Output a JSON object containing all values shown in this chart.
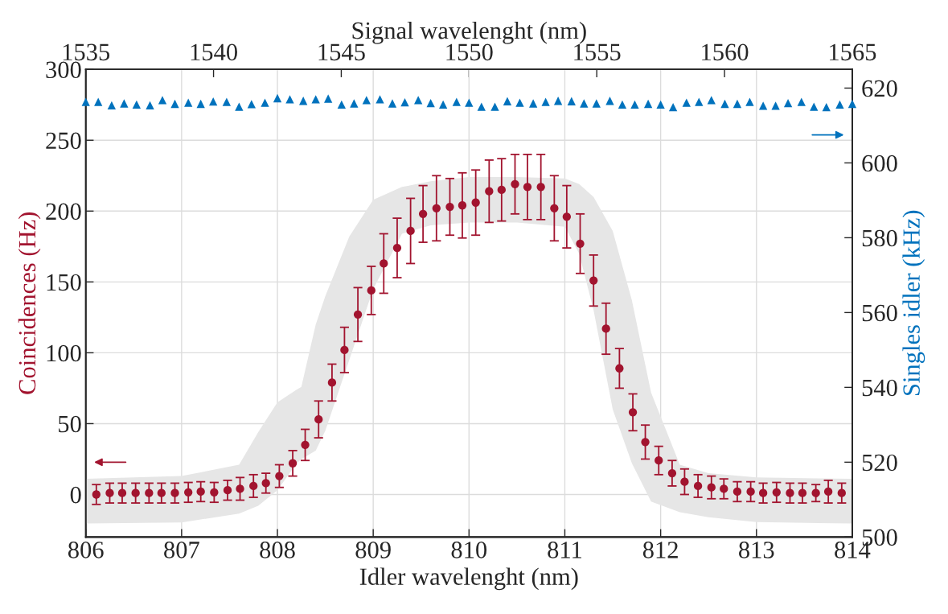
{
  "chart_data": {
    "type": "scatter",
    "xlabel": "Idler wavelenght (nm)",
    "x2label": "Signal wavelenght (nm)",
    "ylabel": "Coincidences (Hz)",
    "y2label": "Singles idler (kHz)",
    "xlim": [
      806,
      814
    ],
    "xticks": [
      806,
      807,
      808,
      809,
      810,
      811,
      812,
      813,
      814
    ],
    "x2lim": [
      1535,
      1565
    ],
    "x2ticks": [
      1535,
      1540,
      1545,
      1550,
      1555,
      1560,
      1565
    ],
    "ylim": [
      -30,
      300
    ],
    "yticks": [
      0,
      50,
      100,
      150,
      200,
      250,
      300
    ],
    "y2lim": [
      500,
      625
    ],
    "y2ticks": [
      500,
      520,
      540,
      560,
      580,
      600,
      620
    ],
    "grid": true,
    "legend": false,
    "series": [
      {
        "type": "area",
        "color": "#e6e6e6",
        "x": [
          806,
          807,
          807.6,
          807.8,
          808,
          808.2,
          808.25,
          808.4,
          808.5,
          808.75,
          809,
          809.3,
          809.6,
          810,
          810.5,
          811,
          811.15,
          811.3,
          811.5,
          811.7,
          811.9,
          812.2,
          812.5,
          813,
          814
        ],
        "values": [
          null,
          null,
          null,
          null,
          null,
          null,
          null,
          null,
          null,
          null,
          null,
          null,
          null,
          null,
          null,
          null,
          null,
          null,
          null,
          null,
          null,
          null,
          null,
          null,
          null
        ],
        "upper": [
          11,
          13,
          21,
          44,
          65,
          74,
          76,
          120,
          140,
          182,
          208,
          217,
          221,
          224,
          224,
          223,
          219,
          210,
          186,
          137,
          72,
          21,
          15,
          12,
          11
        ],
        "lower": [
          -20.5,
          -19.7,
          -13.5,
          -8,
          3,
          22,
          25,
          31,
          45,
          95,
          145,
          184,
          190,
          192,
          192,
          189,
          170,
          130,
          60,
          22,
          -5,
          -12.5,
          -16,
          -19.5,
          -20.5
        ]
      },
      {
        "marker": "circle",
        "color": "#a2142f",
        "x": [
          806.11,
          806.25,
          806.38,
          806.52,
          806.66,
          806.79,
          806.93,
          807.07,
          807.2,
          807.34,
          807.48,
          807.61,
          807.75,
          807.88,
          808.02,
          808.16,
          808.29,
          808.43,
          808.57,
          808.7,
          808.84,
          808.98,
          809.11,
          809.25,
          809.39,
          809.52,
          809.66,
          809.8,
          809.93,
          810.07,
          810.21,
          810.34,
          810.48,
          810.61,
          810.75,
          810.89,
          811.02,
          811.16,
          811.3,
          811.43,
          811.57,
          811.71,
          811.84,
          811.98,
          812.12,
          812.25,
          812.39,
          812.53,
          812.66,
          812.8,
          812.94,
          813.07,
          813.21,
          813.35,
          813.48,
          813.62,
          813.75,
          813.89
        ],
        "values": [
          0,
          1,
          1,
          1,
          1,
          1,
          1,
          1.5,
          2,
          1.5,
          3,
          4,
          6,
          8,
          13,
          22,
          35,
          53,
          79,
          102,
          127,
          144,
          163,
          174,
          186,
          198,
          202,
          203,
          204,
          206,
          214,
          215,
          219,
          217,
          217,
          202,
          196,
          177,
          151,
          117,
          89,
          58,
          37,
          24,
          15,
          9,
          6,
          5,
          4,
          2,
          2,
          1,
          1.5,
          1,
          1,
          1,
          2,
          1
        ],
        "errors": [
          7,
          7,
          7,
          7,
          7,
          7,
          7,
          7,
          7,
          7,
          7,
          8,
          8,
          7,
          8,
          9,
          11,
          13,
          13,
          16,
          19,
          17,
          21,
          21,
          23,
          20,
          23,
          20,
          23,
          23,
          22,
          22,
          21,
          23,
          23,
          23,
          22,
          21,
          18,
          18,
          14,
          13,
          12,
          10,
          9,
          9,
          8,
          8,
          7,
          7,
          7,
          7,
          7,
          7,
          7,
          6,
          8,
          7
        ]
      },
      {
        "marker": "triangle",
        "color": "#0072bd",
        "axis": "y2",
        "x": [
          806,
          806.13,
          806.27,
          806.4,
          806.53,
          806.67,
          806.8,
          806.93,
          807.07,
          807.2,
          807.33,
          807.47,
          807.6,
          807.73,
          807.87,
          808,
          808.13,
          808.27,
          808.4,
          808.53,
          808.67,
          808.8,
          808.93,
          809.07,
          809.2,
          809.33,
          809.47,
          809.6,
          809.73,
          809.87,
          810,
          810.13,
          810.27,
          810.4,
          810.53,
          810.67,
          810.8,
          810.93,
          811.07,
          811.2,
          811.33,
          811.47,
          811.6,
          811.73,
          811.87,
          812,
          812.13,
          812.27,
          812.4,
          812.53,
          812.67,
          812.8,
          812.93,
          813.07,
          813.2,
          813.33,
          813.47,
          813.6,
          813.73,
          813.87,
          814
        ],
        "values": [
          616.3,
          616.3,
          615.4,
          615.9,
          615.6,
          615.4,
          616.8,
          615.8,
          616.1,
          615.8,
          616.4,
          616.3,
          615.0,
          615.7,
          616.1,
          617.3,
          617.0,
          616.6,
          617.0,
          617.2,
          615.6,
          615.9,
          616.8,
          617.0,
          615.9,
          616.2,
          616.8,
          616.0,
          615.6,
          616.3,
          616.1,
          615.0,
          615.0,
          616.5,
          616.1,
          615.9,
          616.3,
          616.6,
          616.5,
          615.9,
          615.9,
          616.6,
          615.6,
          615.6,
          615.8,
          615.6,
          614.9,
          616.1,
          616.3,
          616.8,
          615.8,
          615.8,
          616.3,
          615.3,
          615.3,
          616.0,
          616.3,
          615.0,
          614.9,
          615.6,
          615.8
        ]
      }
    ]
  }
}
